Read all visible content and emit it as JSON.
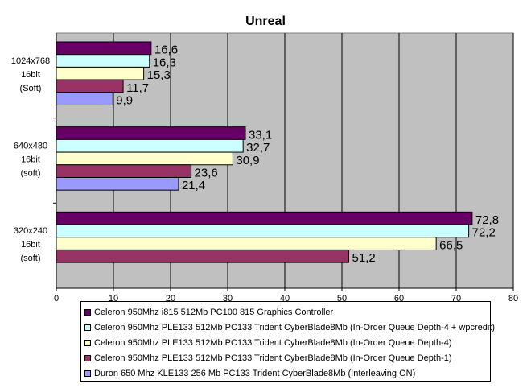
{
  "chart_data": {
    "type": "bar",
    "orientation": "horizontal",
    "title": "Unreal",
    "categories": [
      [
        "1024x768",
        "16bit",
        "(Soft)"
      ],
      [
        "640x480",
        "16bit",
        "(soft)"
      ],
      [
        "320x240",
        "16bit",
        "(soft)"
      ]
    ],
    "series": [
      {
        "name": "Celeron 950Mhz i815 512Mb PC100 815 Graphics Controller",
        "color": "#660066",
        "values": [
          16.6,
          33.1,
          72.8
        ],
        "labels": [
          "16,6",
          "33,1",
          "72,8"
        ]
      },
      {
        "name": "Celeron 950Mhz PLE133 512Mb PC133 Trident CyberBlade8Mb (In-Order Queue Depth-4 + wpcredit)",
        "color": "#CCFFFF",
        "values": [
          16.3,
          32.7,
          72.2
        ],
        "labels": [
          "16,3",
          "32,7",
          "72,2"
        ]
      },
      {
        "name": "Celeron 950Mhz PLE133 512Mb PC133 Trident CyberBlade8Mb (In-Order Queue Depth-4)",
        "color": "#FFFFCC",
        "values": [
          15.3,
          30.9,
          66.5
        ],
        "labels": [
          "15,3",
          "30,9",
          "66,5"
        ]
      },
      {
        "name": "Celeron 950Mhz PLE133 512Mb PC133 Trident CyberBlade8Mb (In-Order Queue Depth-1)",
        "color": "#993366",
        "values": [
          11.7,
          23.6,
          51.2
        ],
        "labels": [
          "11,7",
          "23,6",
          "51,2"
        ]
      },
      {
        "name": "Duron 650 Mhz KLE133 256 Mb PC133 Trident CyberBlade8Mb (Interleaving ON)",
        "color": "#9999FF",
        "values": [
          9.9,
          21.4,
          null
        ],
        "labels": [
          "9,9",
          "21,4",
          null
        ]
      }
    ],
    "xlim": [
      0,
      80
    ],
    "xticks": [
      "0",
      "10",
      "20",
      "30",
      "40",
      "50",
      "60",
      "70",
      "80"
    ],
    "grid": true,
    "plot_background": "#C0C0C0",
    "legend": "bottom"
  }
}
